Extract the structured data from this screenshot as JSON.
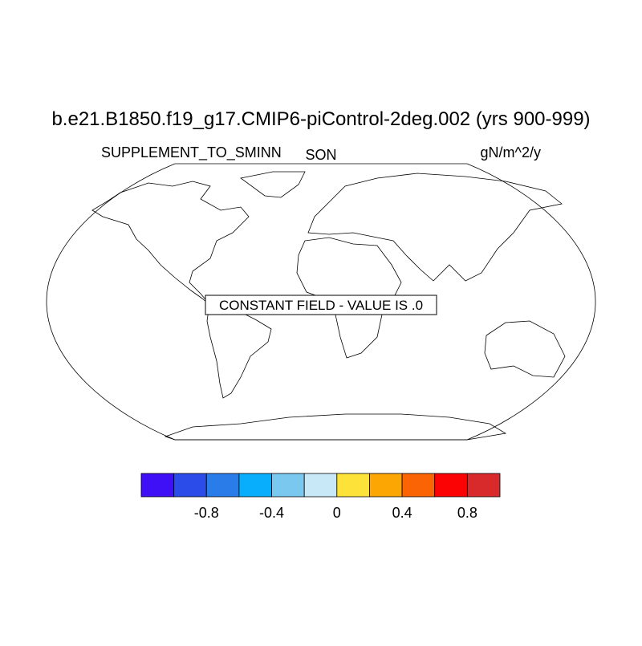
{
  "title": "b.e21.B1850.f19_g17.CMIP6-piControl-2deg.002 (yrs 900-999)",
  "left_label": "SUPPLEMENT_TO_SMINN",
  "center_label": "SON",
  "right_label": "gN/m^2/y",
  "annotation": "CONSTANT FIELD - VALUE IS .0",
  "colorbar": {
    "colors": [
      "#3f0ff5",
      "#2b4ce8",
      "#2a7de9",
      "#08aefc",
      "#7ac8f0",
      "#c8e8f8",
      "#fde23a",
      "#fca604",
      "#fb6405",
      "#fb0305",
      "#d82a2a"
    ],
    "lim": [
      -1.2,
      1.0
    ],
    "ticks": [
      -0.8,
      -0.4,
      0,
      0.4,
      0.8
    ]
  }
}
